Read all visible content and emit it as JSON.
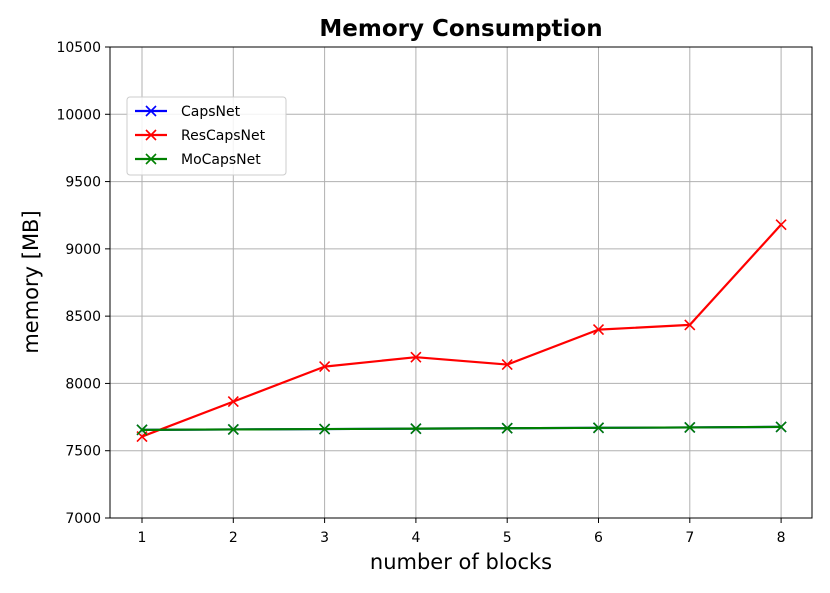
{
  "chart_data": {
    "type": "line",
    "title": "Memory Consumption",
    "xlabel": "number of blocks",
    "ylabel": "memory [MB]",
    "x": [
      1,
      2,
      3,
      4,
      5,
      6,
      7,
      8
    ],
    "xticks": [
      "1",
      "2",
      "3",
      "4",
      "5",
      "6",
      "7",
      "8"
    ],
    "ylim": [
      7000,
      10500
    ],
    "yticks": [
      "7000",
      "7500",
      "8000",
      "8500",
      "9000",
      "9500",
      "10000",
      "10500"
    ],
    "grid": true,
    "legend_position": "upper-left",
    "series": [
      {
        "name": "CapsNet",
        "color": "#0000ff",
        "marker": "x",
        "values": [
          7655,
          7658,
          7661,
          7664,
          7667,
          7670,
          7673,
          7677
        ]
      },
      {
        "name": "ResCapsNet",
        "color": "#ff0000",
        "marker": "x",
        "values": [
          7605,
          7865,
          8125,
          8195,
          8140,
          8400,
          8435,
          9180
        ]
      },
      {
        "name": "MoCapsNet",
        "color": "#008000",
        "marker": "x",
        "values": [
          7655,
          7658,
          7661,
          7664,
          7667,
          7670,
          7673,
          7677
        ]
      }
    ]
  }
}
